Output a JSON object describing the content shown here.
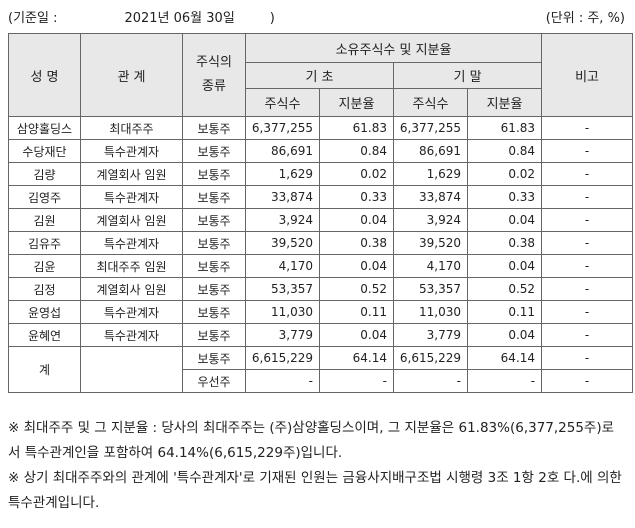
{
  "header": {
    "base_date_label": "(기준일 :",
    "base_date": "2021년 06월 30일",
    "base_date_close": ")",
    "unit": "(단위 : 주, %)"
  },
  "table": {
    "col_name": "성 명",
    "col_relation": "관 계",
    "col_stock_type": "주식의\n종류",
    "col_holdings": "소유주식수 및 지분율",
    "col_begin": "기 초",
    "col_end": "기 말",
    "col_shares": "주식수",
    "col_ratio": "지분율",
    "col_note": "비고",
    "rows": [
      {
        "name": "삼양홀딩스",
        "relation": "최대주주",
        "type": "보통주",
        "begin_shares": "6,377,255",
        "begin_ratio": "61.83",
        "end_shares": "6,377,255",
        "end_ratio": "61.83",
        "note": "-"
      },
      {
        "name": "수당재단",
        "relation": "특수관계자",
        "type": "보통주",
        "begin_shares": "86,691",
        "begin_ratio": "0.84",
        "end_shares": "86,691",
        "end_ratio": "0.84",
        "note": "-"
      },
      {
        "name": "김량",
        "relation": "계열회사 임원",
        "type": "보통주",
        "begin_shares": "1,629",
        "begin_ratio": "0.02",
        "end_shares": "1,629",
        "end_ratio": "0.02",
        "note": "-"
      },
      {
        "name": "김영주",
        "relation": "특수관계자",
        "type": "보통주",
        "begin_shares": "33,874",
        "begin_ratio": "0.33",
        "end_shares": "33,874",
        "end_ratio": "0.33",
        "note": "-"
      },
      {
        "name": "김원",
        "relation": "계열회사 임원",
        "type": "보통주",
        "begin_shares": "3,924",
        "begin_ratio": "0.04",
        "end_shares": "3,924",
        "end_ratio": "0.04",
        "note": "-"
      },
      {
        "name": "김유주",
        "relation": "특수관계자",
        "type": "보통주",
        "begin_shares": "39,520",
        "begin_ratio": "0.38",
        "end_shares": "39,520",
        "end_ratio": "0.38",
        "note": "-"
      },
      {
        "name": "김윤",
        "relation": "최대주주 임원",
        "type": "보통주",
        "begin_shares": "4,170",
        "begin_ratio": "0.04",
        "end_shares": "4,170",
        "end_ratio": "0.04",
        "note": "-"
      },
      {
        "name": "김정",
        "relation": "계열회사 임원",
        "type": "보통주",
        "begin_shares": "53,357",
        "begin_ratio": "0.52",
        "end_shares": "53,357",
        "end_ratio": "0.52",
        "note": "-"
      },
      {
        "name": "윤영섭",
        "relation": "특수관계자",
        "type": "보통주",
        "begin_shares": "11,030",
        "begin_ratio": "0.11",
        "end_shares": "11,030",
        "end_ratio": "0.11",
        "note": "-"
      },
      {
        "name": "윤혜연",
        "relation": "특수관계자",
        "type": "보통주",
        "begin_shares": "3,779",
        "begin_ratio": "0.04",
        "end_shares": "3,779",
        "end_ratio": "0.04",
        "note": "-"
      }
    ],
    "total": {
      "label": "계",
      "common": {
        "type": "보통주",
        "begin_shares": "6,615,229",
        "begin_ratio": "64.14",
        "end_shares": "6,615,229",
        "end_ratio": "64.14",
        "note": "-"
      },
      "preferred": {
        "type": "우선주",
        "begin_shares": "-",
        "begin_ratio": "-",
        "end_shares": "-",
        "end_ratio": "-",
        "note": "-"
      }
    }
  },
  "notes": [
    "※ 최대주주 및 그 지분율 : 당사의 최대주주는 (주)삼양홀딩스이며, 그 지분율은 61.83%(6,377,255주)로서 특수관계인을 포함하여 64.14%(6,615,229주)입니다.",
    "※ 상기 최대주주와의 관계에 '특수관계자'로 기재된 인원는 금융사지배구조법 시행령 3조 1항 2호 다.에 의한 특수관계입니다."
  ]
}
